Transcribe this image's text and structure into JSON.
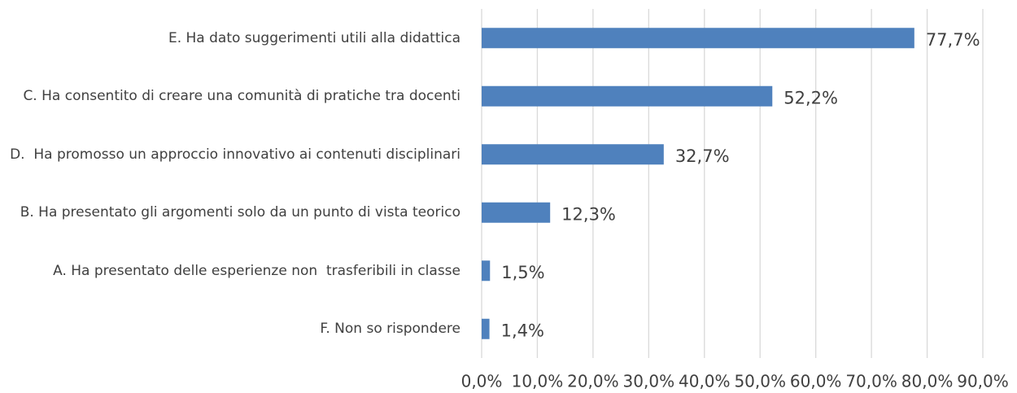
{
  "chart_data": {
    "type": "barh",
    "categories": [
      "E. Ha dato suggerimenti utili alla didattica",
      "C. Ha consentito di creare una comunità di pratiche tra docenti",
      "D.  Ha promosso un approccio innovativo ai contenuti disciplinari",
      "B. Ha presentato gli argomenti solo da un punto di vista teorico",
      "A. Ha presentato delle esperienze non  trasferibili in classe",
      "F. Non so rispondere"
    ],
    "values": [
      77.7,
      52.2,
      32.7,
      12.3,
      1.5,
      1.4
    ],
    "value_labels": [
      "77,7%",
      "52,2%",
      "32,7%",
      "12,3%",
      "1,5%",
      "1,4%"
    ],
    "color": "#4f81bd",
    "xlim": [
      0,
      90
    ],
    "xticks": [
      {
        "value": 0,
        "label": "0,0%"
      },
      {
        "value": 10,
        "label": "10,0%"
      },
      {
        "value": 20,
        "label": "20,0%"
      },
      {
        "value": 30,
        "label": "30,0%"
      },
      {
        "value": 40,
        "label": "40,0%"
      },
      {
        "value": 50,
        "label": "50,0%"
      },
      {
        "value": 60,
        "label": "60,0%"
      },
      {
        "value": 70,
        "label": "70,0%"
      },
      {
        "value": 80,
        "label": "80,0%"
      },
      {
        "value": 90,
        "label": "90,0%"
      }
    ],
    "grid": true
  }
}
